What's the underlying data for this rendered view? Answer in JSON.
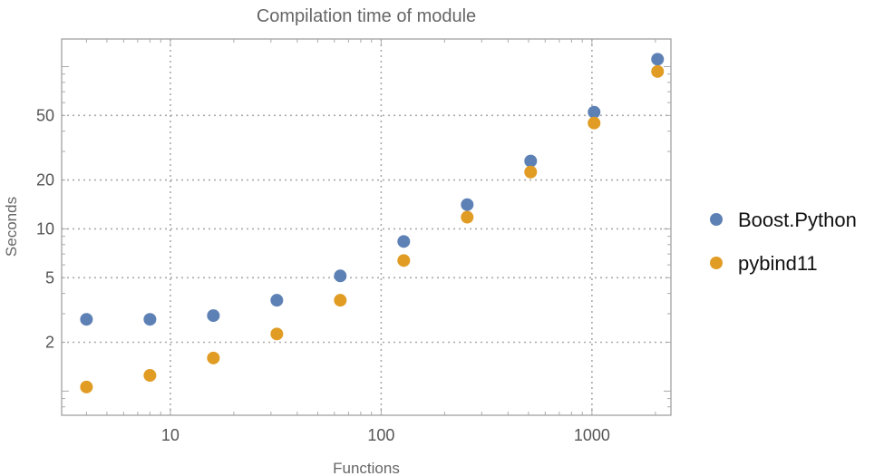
{
  "chart_data": {
    "type": "scatter",
    "title": "Compilation time of module",
    "xlabel": "Functions",
    "ylabel": "Seconds",
    "xscale": "log",
    "yscale": "log",
    "xlim": [
      3.05,
      2370
    ],
    "ylim": [
      0.71,
      148
    ],
    "grid": true,
    "x_ticks": [
      {
        "value": 10,
        "label": "10"
      },
      {
        "value": 100,
        "label": "100"
      },
      {
        "value": 1000,
        "label": "1000"
      }
    ],
    "y_ticks": [
      {
        "value": 2,
        "label": "2"
      },
      {
        "value": 5,
        "label": "5"
      },
      {
        "value": 10,
        "label": "10"
      },
      {
        "value": 20,
        "label": "20"
      },
      {
        "value": 50,
        "label": "50"
      }
    ],
    "legend_position": "right",
    "x": [
      4,
      8,
      16,
      32,
      64,
      128,
      256,
      512,
      1024,
      2048
    ],
    "series": [
      {
        "name": "Boost.Python",
        "color": "#5E81B5",
        "values": [
          2.77,
          2.77,
          2.92,
          3.63,
          5.13,
          8.36,
          14.1,
          26.2,
          52.4,
          111
        ]
      },
      {
        "name": "pybind11",
        "color": "#E19C24",
        "values": [
          1.06,
          1.25,
          1.6,
          2.25,
          3.63,
          6.38,
          11.8,
          22.4,
          44.9,
          93.3
        ]
      }
    ]
  }
}
